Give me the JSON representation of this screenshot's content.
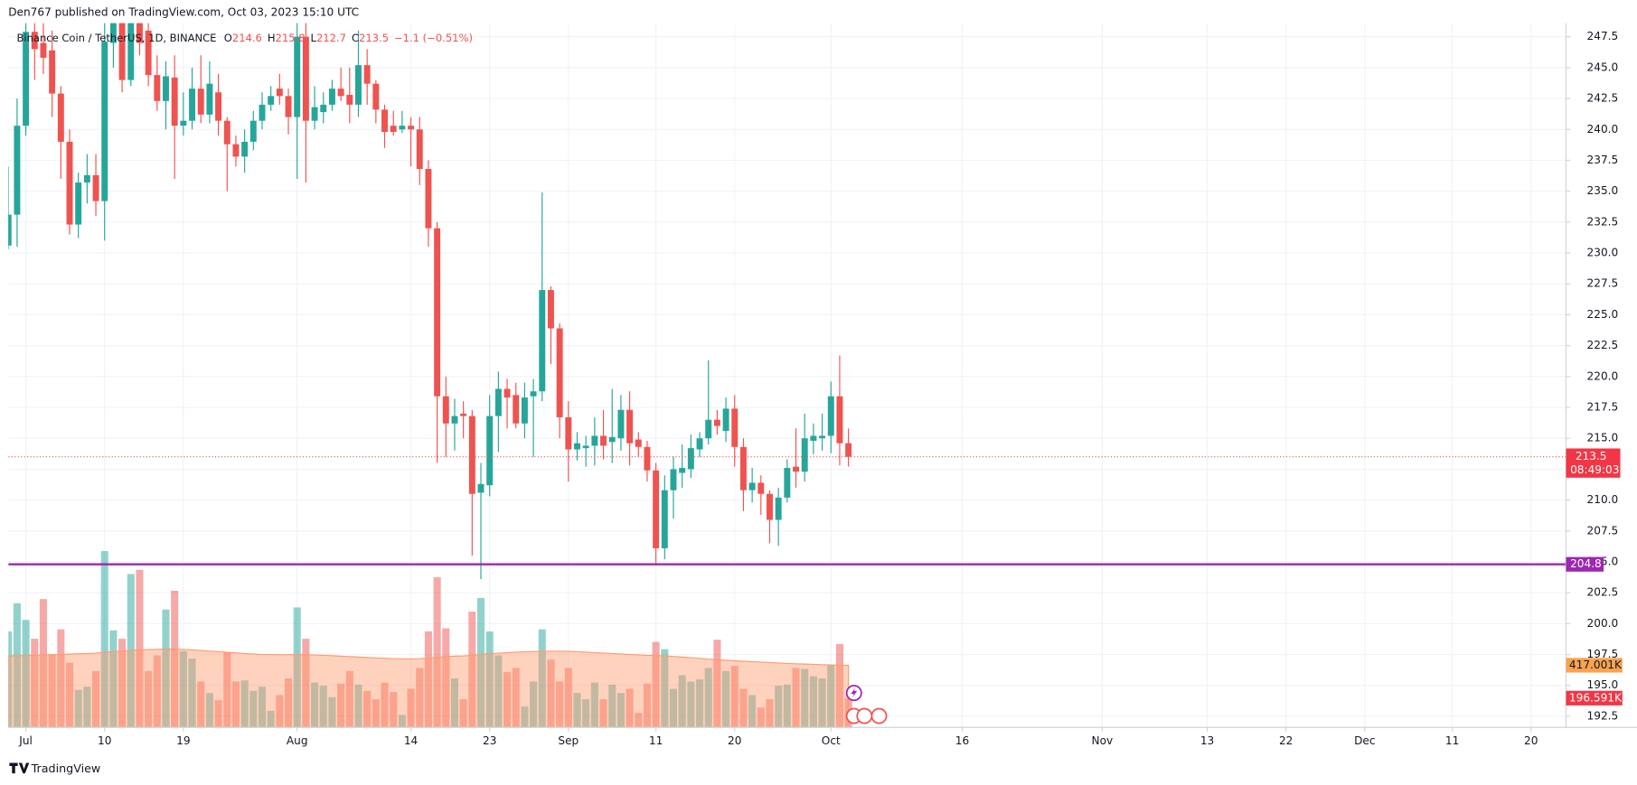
{
  "header": "Den767 published on TradingView.com, Oct 03, 2023 15:10 UTC",
  "footer": "TradingView",
  "chart_data": {
    "type": "candlestick",
    "title": "Binance Coin / TetherUS, 1D, BINANCE",
    "legend_labels": [
      "O",
      "H",
      "L",
      "C"
    ],
    "change_label": "−1.1 (−0.51%)",
    "countdown": "08:49:03",
    "up_color": "#26a69a",
    "down_color": "#ef5350",
    "x": [
      "2023-06-29",
      "2023-06-30",
      "2023-07-01",
      "2023-07-02",
      "2023-07-03",
      "2023-07-04",
      "2023-07-05",
      "2023-07-06",
      "2023-07-07",
      "2023-07-08",
      "2023-07-09",
      "2023-07-10",
      "2023-07-11",
      "2023-07-12",
      "2023-07-13",
      "2023-07-14",
      "2023-07-15",
      "2023-07-16",
      "2023-07-17",
      "2023-07-18",
      "2023-07-19",
      "2023-07-20",
      "2023-07-21",
      "2023-07-22",
      "2023-07-23",
      "2023-07-24",
      "2023-07-25",
      "2023-07-26",
      "2023-07-27",
      "2023-07-28",
      "2023-07-29",
      "2023-07-30",
      "2023-07-31",
      "2023-08-01",
      "2023-08-02",
      "2023-08-03",
      "2023-08-04",
      "2023-08-05",
      "2023-08-06",
      "2023-08-07",
      "2023-08-08",
      "2023-08-09",
      "2023-08-10",
      "2023-08-11",
      "2023-08-12",
      "2023-08-13",
      "2023-08-14",
      "2023-08-15",
      "2023-08-16",
      "2023-08-17",
      "2023-08-18",
      "2023-08-19",
      "2023-08-20",
      "2023-08-21",
      "2023-08-22",
      "2023-08-23",
      "2023-08-24",
      "2023-08-25",
      "2023-08-26",
      "2023-08-27",
      "2023-08-28",
      "2023-08-29",
      "2023-08-30",
      "2023-08-31",
      "2023-09-01",
      "2023-09-02",
      "2023-09-03",
      "2023-09-04",
      "2023-09-05",
      "2023-09-06",
      "2023-09-07",
      "2023-09-08",
      "2023-09-09",
      "2023-09-10",
      "2023-09-11",
      "2023-09-12",
      "2023-09-13",
      "2023-09-14",
      "2023-09-15",
      "2023-09-16",
      "2023-09-17",
      "2023-09-18",
      "2023-09-19",
      "2023-09-20",
      "2023-09-21",
      "2023-09-22",
      "2023-09-23",
      "2023-09-24",
      "2023-09-25",
      "2023-09-26",
      "2023-09-27",
      "2023-09-28",
      "2023-09-29",
      "2023-09-30",
      "2023-10-01",
      "2023-10-02",
      "2023-10-03"
    ],
    "open": [
      230.6,
      233.1,
      240.3,
      247.9,
      247,
      246.4,
      242.9,
      239,
      232.3,
      235.7,
      236.3,
      234.2,
      247,
      249,
      244,
      249,
      248,
      244.4,
      242.3,
      244.2,
      240.3,
      240.7,
      243.3,
      241.2,
      243,
      240.7,
      238.8,
      237.8,
      239,
      240.7,
      242,
      243.3,
      242.7,
      241,
      247.5,
      240.7,
      241.4,
      242,
      243.3,
      242.8,
      242,
      245.2,
      243.7,
      241.6,
      240.3,
      240,
      240.3,
      240,
      236.8,
      232,
      218.4,
      216.2,
      217,
      216.8,
      210.6,
      211.2,
      216.8,
      219,
      218.5,
      216.2,
      218.4,
      218.8,
      227,
      223.9,
      216.7,
      214.1,
      214.2,
      214.4,
      215.2,
      214.7,
      215,
      217.3,
      214.9,
      214.3,
      212.4,
      206.1,
      210.8,
      212.2,
      212.5,
      214.1,
      215,
      216.5,
      215.6,
      217.4,
      214.3,
      210.8,
      211.4,
      210.5,
      208.4,
      210.2,
      212.7,
      212.3,
      214.8,
      215,
      215.2,
      218.4,
      214.6
    ],
    "high": [
      237,
      242.5,
      250,
      251,
      250,
      248,
      243.5,
      240,
      236.5,
      238,
      238,
      250,
      251,
      251,
      252,
      252,
      249,
      246,
      245.5,
      246,
      243,
      245,
      246,
      245.5,
      244.5,
      241,
      239.5,
      240,
      241.5,
      243,
      243.5,
      244.5,
      243.3,
      251,
      249,
      243.5,
      243,
      244,
      245,
      245,
      248,
      246.5,
      244,
      242,
      241.5,
      241.5,
      241,
      241,
      237.5,
      232.5,
      220,
      218.2,
      218,
      217.3,
      213,
      218.5,
      220.4,
      219.8,
      219.5,
      219.5,
      219.8,
      234.9,
      227.3,
      224.3,
      218,
      215.5,
      215.2,
      216.7,
      217.3,
      219,
      218.5,
      218.8,
      215.5,
      214.8,
      213,
      212,
      213.5,
      214.5,
      215.3,
      215.5,
      221.3,
      217.3,
      218.3,
      218.5,
      215,
      212.6,
      212,
      210.8,
      211,
      213.3,
      215.8,
      217,
      216.2,
      217,
      219.6,
      221.7,
      215.8
    ],
    "low": [
      230.3,
      230.5,
      239.5,
      244,
      244.5,
      241,
      236,
      231.5,
      231.2,
      234,
      233,
      231,
      245,
      243,
      243.5,
      246,
      243.5,
      241.5,
      240,
      236,
      239.5,
      240,
      240.5,
      240.5,
      239.5,
      235,
      237,
      236.5,
      238.3,
      240,
      241.5,
      242,
      239.6,
      236,
      235.7,
      240,
      240.5,
      241.5,
      242.3,
      240.5,
      241,
      242,
      240.5,
      238.5,
      239.5,
      239.7,
      237,
      235.5,
      230.5,
      213,
      213.5,
      214,
      215,
      205.5,
      203.6,
      210.3,
      213.9,
      215.8,
      215.8,
      215,
      213.5,
      218,
      221,
      215,
      211.5,
      213.2,
      212.7,
      212.8,
      213.3,
      213,
      214,
      212.8,
      213.5,
      211.5,
      204.7,
      205.2,
      208.5,
      211,
      211.8,
      213.5,
      214.5,
      215.3,
      214.7,
      212.7,
      209.1,
      209.8,
      208.8,
      206.5,
      206.3,
      209.8,
      211,
      211.5,
      213.7,
      214,
      213.8,
      212.8,
      212.7
    ],
    "close": [
      233.1,
      240.3,
      247.9,
      246.5,
      245.8,
      242.9,
      239,
      232.3,
      235.7,
      236.3,
      234.2,
      247.1,
      249,
      244,
      249.5,
      247,
      244.4,
      242.3,
      244.3,
      240.3,
      240.7,
      243.3,
      241.2,
      243.7,
      240.7,
      238.8,
      237.8,
      239,
      240.7,
      242,
      242.7,
      242.7,
      241,
      247.5,
      240.7,
      241.8,
      242,
      243.3,
      242.7,
      242,
      245.2,
      243.7,
      241.6,
      239.8,
      239.8,
      240.3,
      240,
      236.8,
      232,
      218.4,
      216.2,
      216.8,
      216.8,
      210.5,
      211.3,
      216.8,
      219,
      218.3,
      216.2,
      218.3,
      218.8,
      227,
      223.9,
      216.7,
      214.1,
      214.6,
      214.4,
      215.2,
      214.4,
      215.1,
      217.3,
      214.6,
      214.3,
      212.4,
      206.1,
      210.8,
      212.5,
      212.6,
      214.2,
      215,
      216.5,
      216,
      217.4,
      214.3,
      210.8,
      211.4,
      210.5,
      208.4,
      210.2,
      212.6,
      212.3,
      215,
      215.2,
      215.2,
      218.4,
      214.6,
      213.5
    ],
    "volume": [
      644000,
      833000,
      721000,
      595000,
      861000,
      490000,
      658000,
      434000,
      252000,
      273000,
      378000,
      1183000,
      651000,
      595000,
      1029000,
      1057000,
      378000,
      483000,
      791000,
      917000,
      511000,
      462000,
      308000,
      231000,
      182000,
      504000,
      308000,
      315000,
      245000,
      273000,
      112000,
      217000,
      329000,
      805000,
      595000,
      301000,
      280000,
      203000,
      294000,
      378000,
      287000,
      245000,
      189000,
      301000,
      238000,
      84000,
      259000,
      399000,
      644000,
      1008000,
      665000,
      329000,
      189000,
      777000,
      868000,
      644000,
      483000,
      371000,
      399000,
      140000,
      308000,
      658000,
      455000,
      308000,
      399000,
      231000,
      189000,
      301000,
      189000,
      287000,
      231000,
      259000,
      98000,
      294000,
      574000,
      525000,
      259000,
      350000,
      308000,
      322000,
      399000,
      588000,
      378000,
      413000,
      259000,
      217000,
      133000,
      189000,
      280000,
      287000,
      399000,
      392000,
      343000,
      329000,
      420000,
      560000,
      196591
    ],
    "volume_label": "196.591K",
    "volume_ma": [
      480000,
      481000,
      482000,
      484000,
      486000,
      488000,
      490000,
      492000,
      494000,
      496000,
      498000,
      505000,
      508000,
      511000,
      516000,
      520000,
      522000,
      524000,
      525000,
      525000,
      524000,
      520000,
      516000,
      512000,
      508000,
      504000,
      500000,
      496000,
      493000,
      490000,
      489000,
      488000,
      488000,
      490000,
      488000,
      486000,
      484000,
      481000,
      478000,
      475000,
      472000,
      469000,
      466000,
      464000,
      462000,
      460000,
      460000,
      461000,
      465000,
      470000,
      475000,
      478000,
      480000,
      484000,
      490000,
      494000,
      498000,
      502000,
      505000,
      507000,
      509000,
      510000,
      511000,
      511000,
      510000,
      508000,
      505000,
      502000,
      499000,
      496000,
      493000,
      490000,
      487000,
      484000,
      482000,
      480000,
      476000,
      472000,
      468000,
      463000,
      458000,
      454000,
      450000,
      447000,
      444000,
      441000,
      438000,
      435000,
      432000,
      429000,
      427000,
      425000,
      423000,
      421000,
      419000,
      418000,
      417001
    ],
    "volume_ma_label": "417.001K",
    "volume_ma_color": "#ff9c6e",
    "hline": {
      "value": 204.8,
      "color": "#9c27b0"
    },
    "ylim": [
      191.6,
      248.6
    ],
    "yticks": [
      192.5,
      {
        "value": 195,
        "label": "195.0"
      },
      197.5,
      {
        "value": 200,
        "label": "200.0"
      },
      202.5,
      {
        "value": 205,
        "label": "205.0"
      },
      207.5,
      {
        "value": 210,
        "label": "210.0"
      },
      212.5,
      {
        "value": 215,
        "label": "215.0"
      },
      217.5,
      {
        "value": 220,
        "label": "220.0"
      },
      222.5,
      {
        "value": 225,
        "label": "225.0"
      },
      227.5,
      {
        "value": 230,
        "label": "230.0"
      },
      232.5,
      {
        "value": 235,
        "label": "235.0"
      },
      237.5,
      {
        "value": 240,
        "label": "240.0"
      },
      242.5,
      {
        "value": 245,
        "label": "245.0"
      },
      247.5
    ],
    "xlim": [
      "2023-06-29",
      "2023-12-24"
    ],
    "xticks": [
      {
        "value": "2023-07-01",
        "label": "Jul"
      },
      {
        "value": "2023-07-10",
        "label": "10"
      },
      {
        "value": "2023-07-19",
        "label": "19"
      },
      {
        "value": "2023-08-01",
        "label": "Aug"
      },
      {
        "value": "2023-08-14",
        "label": "14"
      },
      {
        "value": "2023-08-23",
        "label": "23"
      },
      {
        "value": "2023-09-01",
        "label": "Sep"
      },
      {
        "value": "2023-09-11",
        "label": "11"
      },
      {
        "value": "2023-09-20",
        "label": "20"
      },
      {
        "value": "2023-10-01",
        "label": "Oct"
      },
      {
        "value": "2023-10-16",
        "label": "16"
      },
      {
        "value": "2023-11-01",
        "label": "Nov"
      },
      {
        "value": "2023-11-13",
        "label": "13"
      },
      {
        "value": "2023-11-22",
        "label": "22"
      },
      {
        "value": "2023-12-01",
        "label": "Dec"
      },
      {
        "value": "2023-12-11",
        "label": "11"
      },
      {
        "value": "2023-12-20",
        "label": "20"
      }
    ],
    "grid": true
  }
}
